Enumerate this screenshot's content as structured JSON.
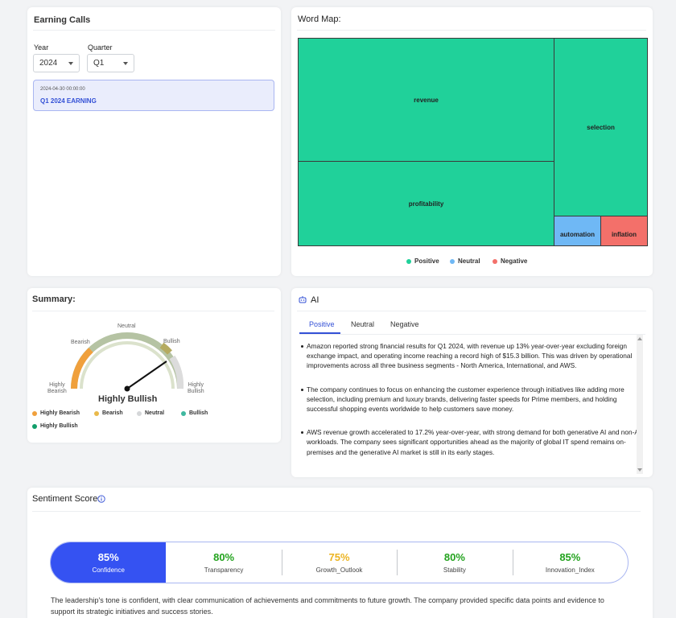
{
  "earning_calls": {
    "title": "Earning Calls",
    "year_label": "Year",
    "year_value": "2024",
    "quarter_label": "Quarter",
    "quarter_value": "Q1",
    "items": [
      {
        "date": "2024-04-30 00:00:00",
        "name": "Q1 2024 EARNING"
      }
    ]
  },
  "word_map": {
    "title": "Word Map:",
    "words": [
      {
        "text": "revenue",
        "sentiment": "Positive"
      },
      {
        "text": "profitability",
        "sentiment": "Positive"
      },
      {
        "text": "selection",
        "sentiment": "Positive"
      },
      {
        "text": "automation",
        "sentiment": "Neutral"
      },
      {
        "text": "inflation",
        "sentiment": "Negative"
      }
    ],
    "legend": [
      {
        "label": "Positive",
        "color": "#20d19a"
      },
      {
        "label": "Neutral",
        "color": "#6fb8f5"
      },
      {
        "label": "Negative",
        "color": "#f3706a"
      }
    ]
  },
  "summary": {
    "title": "Summary:",
    "gauge": {
      "value_label": "Highly Bullish",
      "labels": {
        "highly_bearish": "Highly\nBearish",
        "bearish": "Bearish",
        "neutral": "Neutral",
        "bullish": "Bullish",
        "highly_bullish": "Highly\nBullish"
      }
    },
    "legend": [
      {
        "label": "Highly Bearish",
        "color": "#f0a03c"
      },
      {
        "label": "Bearish",
        "color": "#e9b94a"
      },
      {
        "label": "Neutral",
        "color": "#d5d7d9"
      },
      {
        "label": "Bullish",
        "color": "#3fb8a0"
      },
      {
        "label": "Highly Bullish",
        "color": "#119e6a"
      }
    ]
  },
  "ai": {
    "title": "AI",
    "tabs": [
      "Positive",
      "Neutral",
      "Negative"
    ],
    "active_tab": "Positive",
    "bullets": [
      "Amazon reported strong financial results for Q1 2024, with revenue up 13% year-over-year excluding foreign exchange impact, and operating income reaching a record high of $15.3 billion. This was driven by operational improvements across all three business segments - North America, International, and AWS.",
      "The company continues to focus on enhancing the customer experience through initiatives like adding more selection, including premium and luxury brands, delivering faster speeds for Prime members, and holding successful shopping events worldwide to help customers save money.",
      "AWS revenue growth accelerated to 17.2% year-over-year, with strong demand for both generative AI and non-AI workloads. The company sees significant opportunities ahead as the majority of global IT spend remains on-premises and the generative AI market is still in its early stages."
    ]
  },
  "sentiment": {
    "title": "Sentiment Score:",
    "scores": [
      {
        "value": "85%",
        "label": "Confidence",
        "color": "#ffffff"
      },
      {
        "value": "80%",
        "label": "Transparency",
        "color": "#24a31f"
      },
      {
        "value": "75%",
        "label": "Growth_Outlook",
        "color": "#ecb422"
      },
      {
        "value": "80%",
        "label": "Stability",
        "color": "#24a31f"
      },
      {
        "value": "85%",
        "label": "Innovation_Index",
        "color": "#24a31f"
      }
    ],
    "description": "The leadership's tone is confident, with clear communication of achievements and commitments to future growth. The company provided specific data points and evidence to support its strategic initiatives and success stories."
  }
}
